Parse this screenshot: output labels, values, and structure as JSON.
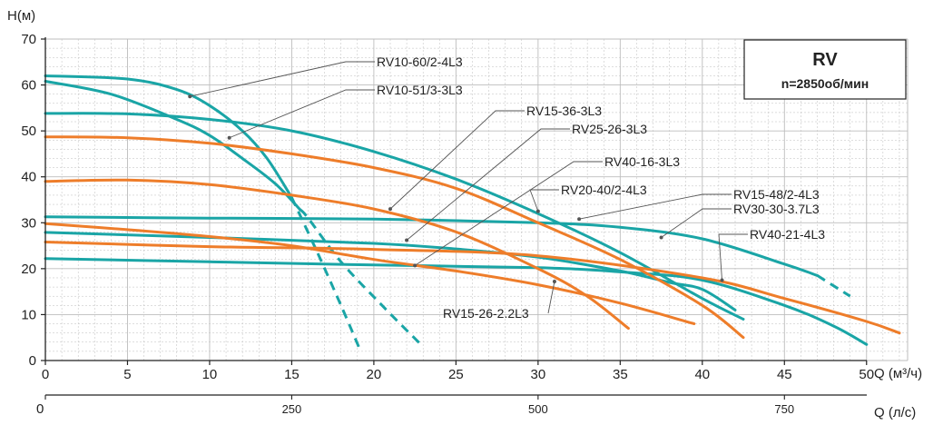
{
  "chart_data": {
    "type": "line",
    "title": "RV",
    "subtitle": "n=2850об/мин",
    "ylabel": "H(м)",
    "xlabel": "Q (м³/ч)",
    "x2label": "Q (л/с)",
    "xlim": [
      0,
      52.5
    ],
    "ylim": [
      0,
      70
    ],
    "xticks": [
      0,
      5,
      10,
      15,
      20,
      25,
      30,
      35,
      40,
      45,
      50
    ],
    "yticks": [
      0,
      10,
      20,
      30,
      40,
      50,
      60,
      70
    ],
    "x2ticks": [
      0,
      250,
      500,
      750
    ],
    "x2_to_x_factor": 0.06,
    "grid": true,
    "colors": {
      "teal": "#1aa5a6",
      "orange": "#ee7d2a",
      "grid": "#bdbdbd",
      "axis": "#222222"
    },
    "series": [
      {
        "name": "RV10-60/2-4L3",
        "color": "teal",
        "points": [
          [
            0,
            62
          ],
          [
            5,
            61.3
          ],
          [
            8,
            59
          ],
          [
            10,
            55.5
          ],
          [
            12,
            50
          ],
          [
            13.5,
            44
          ],
          [
            15,
            35.5
          ],
          [
            16.5,
            24
          ],
          [
            18,
            12
          ],
          [
            19.2,
            2
          ]
        ],
        "dashed_from_x": 15
      },
      {
        "name": "RV10-51/3-3L3",
        "color": "teal",
        "points": [
          [
            0,
            60.8
          ],
          [
            4,
            58
          ],
          [
            8,
            52.5
          ],
          [
            10,
            49
          ],
          [
            12,
            44
          ],
          [
            14,
            38.5
          ],
          [
            16,
            31
          ],
          [
            18,
            21.5
          ],
          [
            20.5,
            12
          ],
          [
            23,
            3
          ]
        ],
        "dashed_from_x": 15.5
      },
      {
        "name": "RV15-48/2-4L3",
        "color": "teal",
        "points": [
          [
            0,
            53.8
          ],
          [
            5,
            53.7
          ],
          [
            10,
            52.5
          ],
          [
            15,
            50
          ],
          [
            20,
            45.5
          ],
          [
            25,
            39.5
          ],
          [
            30,
            32
          ],
          [
            35,
            23.5
          ],
          [
            40,
            13.5
          ],
          [
            42.5,
            9
          ]
        ]
      },
      {
        "name": "RV30-30-3.7L3",
        "color": "teal",
        "points": [
          [
            0,
            31.3
          ],
          [
            10,
            31
          ],
          [
            20,
            30.8
          ],
          [
            30,
            30
          ],
          [
            35,
            29
          ],
          [
            40,
            26.5
          ],
          [
            45,
            21
          ],
          [
            47,
            18.5
          ],
          [
            49,
            14
          ]
        ],
        "dashed_from_x": 47
      },
      {
        "name": "RV40-21-4L3",
        "color": "teal",
        "points": [
          [
            0,
            22.2
          ],
          [
            10,
            21.5
          ],
          [
            20,
            20.8
          ],
          [
            30,
            20.2
          ],
          [
            35,
            19.3
          ],
          [
            40,
            17.5
          ],
          [
            45,
            12
          ],
          [
            48,
            7.5
          ],
          [
            50,
            3.5
          ]
        ]
      },
      {
        "name": "RV20-40/2-4L3",
        "color": "teal",
        "points": [
          [
            0,
            27.9
          ],
          [
            10,
            26.8
          ],
          [
            20,
            25.5
          ],
          [
            25,
            24.3
          ],
          [
            30,
            22.5
          ],
          [
            35,
            19.5
          ],
          [
            38,
            17
          ],
          [
            40,
            15.5
          ],
          [
            42,
            11
          ]
        ]
      },
      {
        "name": "RV15-36-3L3",
        "color": "orange",
        "points": [
          [
            0,
            39
          ],
          [
            5,
            39.3
          ],
          [
            10,
            38.3
          ],
          [
            15,
            36
          ],
          [
            20,
            33
          ],
          [
            25,
            28
          ],
          [
            30,
            20
          ],
          [
            33,
            14
          ],
          [
            35.5,
            7
          ]
        ]
      },
      {
        "name": "RV25-26-3L3",
        "color": "orange",
        "points": [
          [
            0,
            48.7
          ],
          [
            5,
            48.5
          ],
          [
            10,
            47.3
          ],
          [
            15,
            45
          ],
          [
            20,
            42
          ],
          [
            25,
            37.5
          ],
          [
            30,
            30
          ],
          [
            35,
            22
          ],
          [
            40,
            12
          ],
          [
            42.5,
            5
          ]
        ]
      },
      {
        "name": "RV40-16-3L3",
        "color": "orange",
        "points": [
          [
            0,
            25.8
          ],
          [
            10,
            24.8
          ],
          [
            20,
            24.2
          ],
          [
            30,
            22.8
          ],
          [
            40,
            18
          ],
          [
            45,
            13.5
          ],
          [
            50,
            8.5
          ],
          [
            52,
            6
          ]
        ]
      },
      {
        "name": "RV15-26-2.2L3",
        "color": "orange",
        "points": [
          [
            0,
            29.8
          ],
          [
            5,
            28.5
          ],
          [
            10,
            27
          ],
          [
            15,
            25
          ],
          [
            20,
            22
          ],
          [
            25,
            19.5
          ],
          [
            30,
            16.5
          ],
          [
            35,
            12.5
          ],
          [
            39.5,
            8
          ]
        ]
      }
    ],
    "box": {
      "title": "RV",
      "subtitle": "n=2850об/мин"
    }
  }
}
